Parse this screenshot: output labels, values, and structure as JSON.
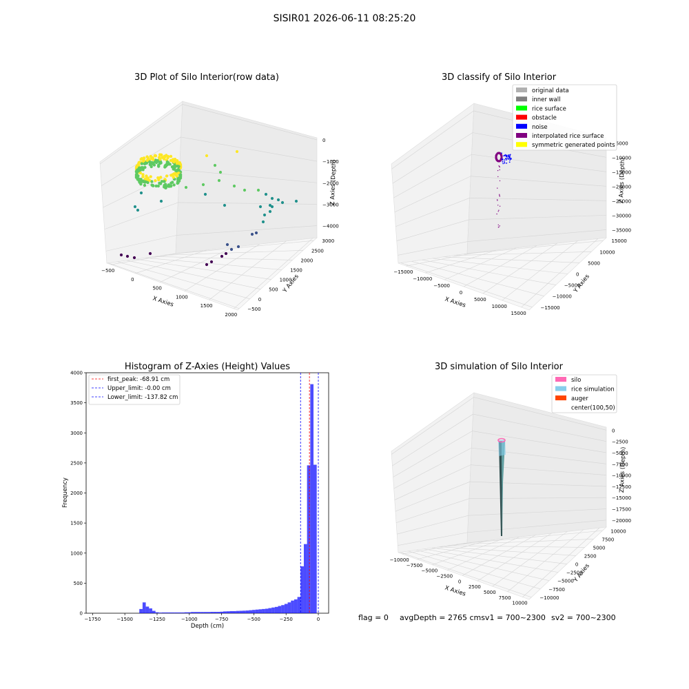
{
  "figure": {
    "suptitle": "SISIR01 2026-06-11 08:25:20"
  },
  "footer": {
    "flag": "flag = 0",
    "avg_depth": "avgDepth = 2765 cmsv1 = 700~2300",
    "sv2": "sv2 = 700~2300"
  },
  "chart_data": [
    {
      "type": "scatter",
      "projection": "3d",
      "title": "3D Plot of Silo Interior(row data)",
      "xlabel": "X Axies",
      "ylabel": "Y Axies",
      "zlabel": "Z Axies (Depth)",
      "xticks": [
        "−500",
        "0",
        "500",
        "1000",
        "1500",
        "2000"
      ],
      "yticks": [
        "−500",
        "0",
        "500",
        "1000",
        "1500",
        "2000",
        "2500",
        "3000"
      ],
      "zticks": [
        "0",
        "−1000",
        "−2000",
        "−3000",
        "−4000"
      ],
      "colormap": "viridis",
      "grid": true
    },
    {
      "type": "scatter",
      "projection": "3d",
      "title": "3D classify of Silo Interior",
      "xlabel": "X Axies",
      "ylabel": "Y Axies",
      "zlabel": "Z Axies (Depth)",
      "xticks": [
        "−15000",
        "−10000",
        "−5000",
        "0",
        "5000",
        "10000",
        "15000"
      ],
      "yticks": [
        "−15000",
        "−10000",
        "−5000",
        "0",
        "5000",
        "10000",
        "15000"
      ],
      "zticks": [
        "−5000",
        "−10000",
        "−15000",
        "−20000",
        "−25000",
        "−30000",
        "−35000"
      ],
      "legend_position": "top-right",
      "legend": [
        {
          "label": "original data",
          "color": "#b0b0b0"
        },
        {
          "label": "inner wall",
          "color": "#808080"
        },
        {
          "label": "rice surface",
          "color": "#00ff00"
        },
        {
          "label": "obstacle",
          "color": "#ff0000"
        },
        {
          "label": "noise",
          "color": "#0000ff"
        },
        {
          "label": "interpolated rice surface",
          "color": "#800080"
        },
        {
          "label": "symmetric generated points",
          "color": "#ffff00"
        }
      ],
      "grid": true
    },
    {
      "type": "bar",
      "title": "Histogram of Z-Axies (Height) Values",
      "xlabel": "Depth (cm)",
      "ylabel": "Frequency",
      "xlim": [
        -1800,
        80
      ],
      "ylim": [
        0,
        4000
      ],
      "xticks": [
        "−1750",
        "−1500",
        "−1250",
        "−1000",
        "−750",
        "−500",
        "−250",
        "0"
      ],
      "yticks": [
        "0",
        "500",
        "1000",
        "1500",
        "2000",
        "2500",
        "3000",
        "3500",
        "4000"
      ],
      "bar_color": "#0000ff",
      "bin_width": 25,
      "bins": [
        {
          "x": -1375,
          "count": 70
        },
        {
          "x": -1350,
          "count": 180
        },
        {
          "x": -1325,
          "count": 110
        },
        {
          "x": -1300,
          "count": 80
        },
        {
          "x": -1275,
          "count": 40
        },
        {
          "x": -1250,
          "count": 15
        },
        {
          "x": -1225,
          "count": 10
        },
        {
          "x": -1200,
          "count": 12
        },
        {
          "x": -1175,
          "count": 12
        },
        {
          "x": -1150,
          "count": 12
        },
        {
          "x": -1125,
          "count": 12
        },
        {
          "x": -1100,
          "count": 12
        },
        {
          "x": -1075,
          "count": 12
        },
        {
          "x": -1050,
          "count": 12
        },
        {
          "x": -1025,
          "count": 15
        },
        {
          "x": -1000,
          "count": 15
        },
        {
          "x": -975,
          "count": 20
        },
        {
          "x": -950,
          "count": 20
        },
        {
          "x": -925,
          "count": 20
        },
        {
          "x": -900,
          "count": 20
        },
        {
          "x": -875,
          "count": 20
        },
        {
          "x": -850,
          "count": 20
        },
        {
          "x": -825,
          "count": 22
        },
        {
          "x": -800,
          "count": 22
        },
        {
          "x": -775,
          "count": 22
        },
        {
          "x": -750,
          "count": 25
        },
        {
          "x": -725,
          "count": 30
        },
        {
          "x": -700,
          "count": 32
        },
        {
          "x": -675,
          "count": 35
        },
        {
          "x": -650,
          "count": 35
        },
        {
          "x": -625,
          "count": 38
        },
        {
          "x": -600,
          "count": 40
        },
        {
          "x": -575,
          "count": 42
        },
        {
          "x": -550,
          "count": 45
        },
        {
          "x": -525,
          "count": 50
        },
        {
          "x": -500,
          "count": 55
        },
        {
          "x": -475,
          "count": 60
        },
        {
          "x": -450,
          "count": 65
        },
        {
          "x": -425,
          "count": 70
        },
        {
          "x": -400,
          "count": 75
        },
        {
          "x": -375,
          "count": 85
        },
        {
          "x": -350,
          "count": 95
        },
        {
          "x": -325,
          "count": 105
        },
        {
          "x": -300,
          "count": 120
        },
        {
          "x": -275,
          "count": 135
        },
        {
          "x": -250,
          "count": 155
        },
        {
          "x": -225,
          "count": 180
        },
        {
          "x": -200,
          "count": 210
        },
        {
          "x": -175,
          "count": 230
        },
        {
          "x": -150,
          "count": 270
        },
        {
          "x": -125,
          "count": 780
        },
        {
          "x": -100,
          "count": 1150
        },
        {
          "x": -75,
          "count": 2460
        },
        {
          "x": -50,
          "count": 3810
        },
        {
          "x": -25,
          "count": 2470
        }
      ],
      "vlines": [
        {
          "label": "first_peak: -68.91 cm",
          "value": -68.91,
          "color": "#ff0000"
        },
        {
          "label": "Upper_limit: -0.00 cm",
          "value": 0,
          "color": "#0000ff"
        },
        {
          "label": "Lower_limit: -137.82 cm",
          "value": -137.82,
          "color": "#0000ff"
        }
      ],
      "legend_position": "top-left"
    },
    {
      "type": "surface",
      "projection": "3d",
      "title": "3D simulation of Silo Interior",
      "xlabel": "X Axies",
      "ylabel": "Y Axies",
      "zlabel": "Z Axies (Depth)",
      "xticks": [
        "−10000",
        "−7500",
        "−5000",
        "−2500",
        "0",
        "2500",
        "5000",
        "7500",
        "10000"
      ],
      "yticks": [
        "−10000",
        "−7500",
        "−5000",
        "−2500",
        "0",
        "2500",
        "5000",
        "7500",
        "10000"
      ],
      "zticks": [
        "0",
        "−2500",
        "−5000",
        "−7500",
        "−10000",
        "−12500",
        "−15000",
        "−17500",
        "−20000"
      ],
      "legend_position": "top-right",
      "legend": [
        {
          "label": "silo",
          "color": "#ff69b4"
        },
        {
          "label": "rice simulation",
          "color": "#87ceeb"
        },
        {
          "label": "auger",
          "color": "#ff4500"
        },
        {
          "label": "center(100,50)",
          "color": "none"
        }
      ],
      "grid": true
    }
  ]
}
